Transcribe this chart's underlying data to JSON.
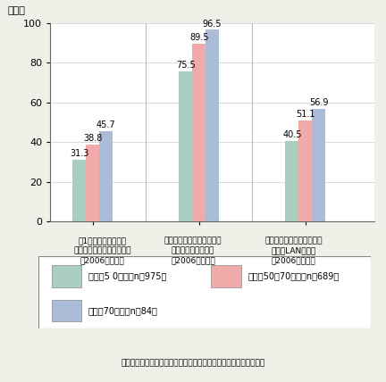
{
  "ylabel": "（％）",
  "ylim": [
    0,
    100
  ],
  "yticks": [
    0,
    20,
    40,
    60,
    80,
    100
  ],
  "groups": [
    "学1校当たりの教育用\nコンピュータ平均設置台数\n（2006年、台）",
    "高速インターネット接続を\n導入した学校の割合\n（2006年、％）",
    "市区町村内の全普通教室に\nおけるLAN整備率\n（2006年、％）"
  ],
  "series": [
    {
      "label": "偏差偖5 0以下（n＝975）",
      "color": "#aacfc0",
      "values": [
        31.3,
        75.5,
        40.5
      ]
    },
    {
      "label": "偏差偖50赠70未満（n＝689）",
      "color": "#f0aaaa",
      "values": [
        38.8,
        89.5,
        51.1
      ]
    },
    {
      "label": "偏差偖70以上（n＝84）",
      "color": "#aabcd8",
      "values": [
        45.7,
        96.5,
        56.9
      ]
    }
  ],
  "legend_labels": [
    "偏差偖5 0以下（n＝975）",
    "偏差偖50赠70未満（n＝689）",
    "偏差偖70以上（n＝84）"
  ],
  "legend_colors": [
    "#aacfc0",
    "#f0aaaa",
    "#aabcd8"
  ],
  "source_text": "（出典）「地域の情報化への取組と地域活性化に関する調査研究」",
  "bar_width": 0.25,
  "background_color": "#f0f0e8",
  "plot_bg_color": "#ffffff"
}
